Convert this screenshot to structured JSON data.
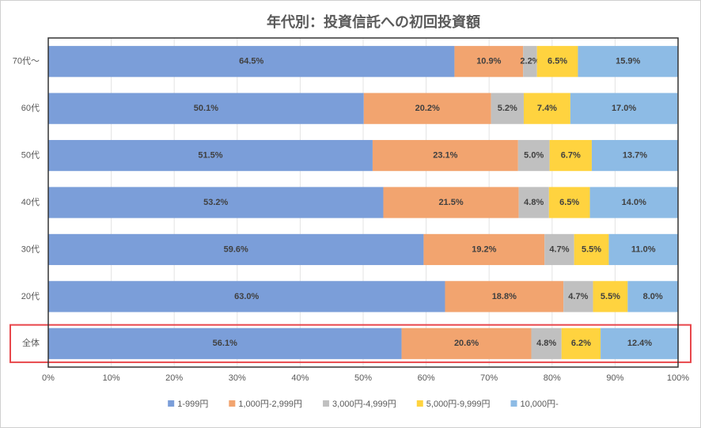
{
  "chart_data": {
    "type": "stacked-bar-horizontal",
    "title": "年代別：投資信託への初回投資額",
    "categories": [
      "70代〜",
      "60代",
      "50代",
      "40代",
      "30代",
      "20代",
      "全体"
    ],
    "series": [
      {
        "name": "1-999円",
        "color": "#7b9ed9",
        "values": [
          64.5,
          50.1,
          51.5,
          53.2,
          59.6,
          63.0,
          56.1
        ],
        "value_labels": [
          "64.5%",
          "50.1%",
          "51.5%",
          "53.2%",
          "59.6%",
          "63.0%",
          "56.1%"
        ]
      },
      {
        "name": "1,000円-2,999円",
        "color": "#f2a46f",
        "values": [
          10.9,
          20.2,
          23.1,
          21.5,
          19.2,
          18.8,
          20.6
        ],
        "value_labels": [
          "10.9%",
          "20.2%",
          "23.1%",
          "21.5%",
          "19.2%",
          "18.8%",
          "20.6%"
        ]
      },
      {
        "name": "3,000円-4,999円",
        "color": "#c0c0c0",
        "values": [
          2.2,
          5.2,
          5.0,
          4.8,
          4.7,
          4.7,
          4.8
        ],
        "value_labels": [
          "2.2%",
          "5.2%",
          "5.0%",
          "4.8%",
          "4.7%",
          "4.7%",
          "4.8%"
        ]
      },
      {
        "name": "5,000円-9,999円",
        "color": "#ffd33f",
        "values": [
          6.5,
          7.4,
          6.7,
          6.5,
          5.5,
          5.5,
          6.2
        ],
        "value_labels": [
          "6.5%",
          "7.4%",
          "6.7%",
          "6.5%",
          "5.5%",
          "5.5%",
          "6.2%"
        ]
      },
      {
        "name": "10,000円-",
        "color": "#8dbbe5",
        "values": [
          15.9,
          17.0,
          13.7,
          14.0,
          11.0,
          8.0,
          12.4
        ],
        "value_labels": [
          "15.9%",
          "17.0%",
          "13.7%",
          "14.0%",
          "11.0%",
          "8.0%",
          "12.4%"
        ]
      }
    ],
    "xlim": [
      0,
      100
    ],
    "xticks": [
      {
        "value": 0,
        "label": "0%"
      },
      {
        "value": 10,
        "label": "10%"
      },
      {
        "value": 20,
        "label": "20%"
      },
      {
        "value": 30,
        "label": "30%"
      },
      {
        "value": 40,
        "label": "40%"
      },
      {
        "value": 50,
        "label": "50%"
      },
      {
        "value": 60,
        "label": "60%"
      },
      {
        "value": 70,
        "label": "70%"
      },
      {
        "value": 80,
        "label": "80%"
      },
      {
        "value": 90,
        "label": "90%"
      },
      {
        "value": 100,
        "label": "100%"
      }
    ],
    "grid": true,
    "legend": "bottom"
  }
}
